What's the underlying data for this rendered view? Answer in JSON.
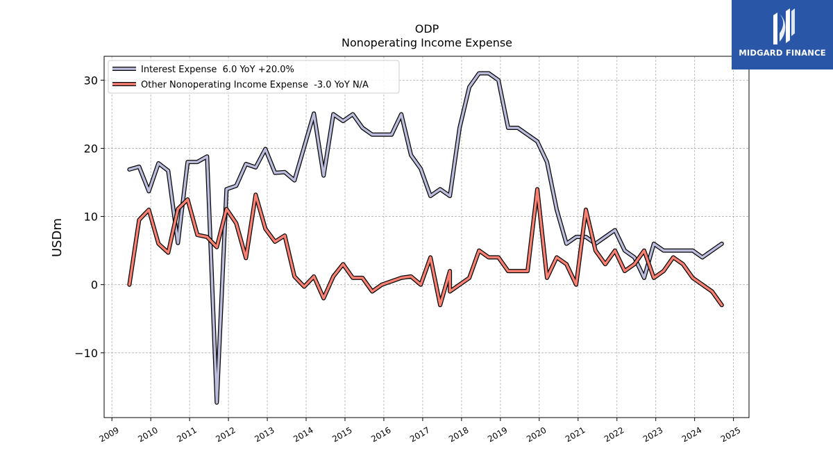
{
  "chart_data": {
    "type": "line",
    "title": "ODP",
    "subtitle": "Nonoperating Income Expense",
    "ylabel": "USDm",
    "xlabel": "",
    "ylim": [
      -19.5,
      33.5
    ],
    "xlim": [
      2008.8,
      2025.4
    ],
    "yticks": [
      -10,
      0,
      10,
      20,
      30
    ],
    "ytick_labels": [
      "−10",
      "0",
      "10",
      "20",
      "30"
    ],
    "xticks": [
      2009,
      2010,
      2011,
      2012,
      2013,
      2014,
      2015,
      2016,
      2017,
      2018,
      2019,
      2020,
      2021,
      2022,
      2023,
      2024,
      2025
    ],
    "xtick_labels": [
      "2009",
      "2010",
      "2011",
      "2012",
      "2013",
      "2014",
      "2015",
      "2016",
      "2017",
      "2018",
      "2019",
      "2020",
      "2021",
      "2022",
      "2023",
      "2024",
      "2025"
    ],
    "grid": true,
    "legend_position": "top-left",
    "series": [
      {
        "name": "Interest Expense",
        "legend_label": "Interest Expense  6.0 YoY +20.0%",
        "color": "#bcbddc",
        "points": [
          [
            2009.45,
            16.9
          ],
          [
            2009.7,
            17.3
          ],
          [
            2009.95,
            13.7
          ],
          [
            2010.2,
            17.8
          ],
          [
            2010.45,
            16.7
          ],
          [
            2010.7,
            6.1
          ],
          [
            2010.95,
            18.0
          ],
          [
            2011.2,
            18.0
          ],
          [
            2011.45,
            18.8
          ],
          [
            2011.7,
            -17.3
          ],
          [
            2011.95,
            14.0
          ],
          [
            2012.2,
            14.5
          ],
          [
            2012.45,
            17.7
          ],
          [
            2012.7,
            17.2
          ],
          [
            2012.95,
            19.9
          ],
          [
            2013.2,
            16.4
          ],
          [
            2013.45,
            16.5
          ],
          [
            2013.7,
            15.3
          ],
          [
            2013.95,
            20.2
          ],
          [
            2014.2,
            25.1
          ],
          [
            2014.45,
            16.0
          ],
          [
            2014.7,
            25.0
          ],
          [
            2014.95,
            24.0
          ],
          [
            2015.2,
            25.0
          ],
          [
            2015.45,
            23.0
          ],
          [
            2015.7,
            22.0
          ],
          [
            2015.95,
            22.0
          ],
          [
            2016.2,
            22.0
          ],
          [
            2016.45,
            25.0
          ],
          [
            2016.7,
            19.0
          ],
          [
            2016.95,
            17.0
          ],
          [
            2017.2,
            13.0
          ],
          [
            2017.45,
            14.0
          ],
          [
            2017.7,
            13.0
          ],
          [
            2017.95,
            23.0
          ],
          [
            2018.2,
            29.0
          ],
          [
            2018.45,
            31.0
          ],
          [
            2018.7,
            31.0
          ],
          [
            2018.95,
            30.0
          ],
          [
            2019.2,
            23.0
          ],
          [
            2019.45,
            23.0
          ],
          [
            2019.7,
            22.0
          ],
          [
            2019.95,
            21.0
          ],
          [
            2020.2,
            18.0
          ],
          [
            2020.45,
            11.0
          ],
          [
            2020.7,
            6.0
          ],
          [
            2020.95,
            7.0
          ],
          [
            2021.2,
            7.0
          ],
          [
            2021.45,
            6.0
          ],
          [
            2021.7,
            7.0
          ],
          [
            2021.95,
            8.0
          ],
          [
            2022.2,
            5.0
          ],
          [
            2022.45,
            4.0
          ],
          [
            2022.7,
            1.0
          ],
          [
            2022.95,
            6.0
          ],
          [
            2023.2,
            5.0
          ],
          [
            2023.45,
            5.0
          ],
          [
            2023.7,
            5.0
          ],
          [
            2023.95,
            5.0
          ],
          [
            2024.2,
            4.0
          ],
          [
            2024.45,
            5.0
          ],
          [
            2024.7,
            6.0
          ]
        ]
      },
      {
        "name": "Other Nonoperating Income Expense",
        "legend_label": "Other Nonoperating Income Expense  -3.0 YoY N/A",
        "color": "#fa8072",
        "points": [
          [
            2009.45,
            0.0
          ],
          [
            2009.7,
            9.5
          ],
          [
            2009.95,
            11.0
          ],
          [
            2010.2,
            6.0
          ],
          [
            2010.45,
            4.7
          ],
          [
            2010.7,
            11.1
          ],
          [
            2010.95,
            12.5
          ],
          [
            2011.2,
            7.3
          ],
          [
            2011.45,
            7.0
          ],
          [
            2011.7,
            5.5
          ],
          [
            2011.95,
            11.1
          ],
          [
            2012.2,
            9.0
          ],
          [
            2012.45,
            3.9
          ],
          [
            2012.7,
            13.2
          ],
          [
            2012.95,
            8.2
          ],
          [
            2013.2,
            6.3
          ],
          [
            2013.45,
            7.2
          ],
          [
            2013.7,
            1.2
          ],
          [
            2013.95,
            -0.3
          ],
          [
            2014.2,
            1.2
          ],
          [
            2014.45,
            -2.0
          ],
          [
            2014.7,
            1.2
          ],
          [
            2014.95,
            3.0
          ],
          [
            2015.2,
            1.0
          ],
          [
            2015.45,
            1.0
          ],
          [
            2015.7,
            -1.0
          ],
          [
            2015.95,
            0.0
          ],
          [
            2016.2,
            0.5
          ],
          [
            2016.45,
            1.0
          ],
          [
            2016.7,
            1.2
          ],
          [
            2016.95,
            0.0
          ],
          [
            2017.2,
            4.0
          ],
          [
            2017.45,
            -3.0
          ],
          [
            2017.7,
            2.0
          ],
          [
            2017.7,
            -1.0
          ],
          [
            2017.95,
            0.0
          ],
          [
            2018.2,
            1.0
          ],
          [
            2018.45,
            5.0
          ],
          [
            2018.7,
            4.0
          ],
          [
            2018.95,
            4.0
          ],
          [
            2019.2,
            2.0
          ],
          [
            2019.45,
            2.0
          ],
          [
            2019.7,
            2.0
          ],
          [
            2019.95,
            14.0
          ],
          [
            2020.2,
            1.0
          ],
          [
            2020.45,
            4.0
          ],
          [
            2020.7,
            3.0
          ],
          [
            2020.95,
            0.0
          ],
          [
            2021.2,
            11.0
          ],
          [
            2021.45,
            5.0
          ],
          [
            2021.7,
            3.0
          ],
          [
            2021.95,
            5.0
          ],
          [
            2022.2,
            2.0
          ],
          [
            2022.45,
            3.0
          ],
          [
            2022.7,
            5.0
          ],
          [
            2022.95,
            1.0
          ],
          [
            2023.2,
            2.0
          ],
          [
            2023.45,
            4.0
          ],
          [
            2023.7,
            3.0
          ],
          [
            2023.95,
            1.0
          ],
          [
            2024.2,
            0.0
          ],
          [
            2024.45,
            -1.0
          ],
          [
            2024.7,
            -3.0
          ]
        ]
      }
    ]
  },
  "logo": {
    "text": "MIDGARD FINANCE",
    "background": "#2a56a8"
  }
}
